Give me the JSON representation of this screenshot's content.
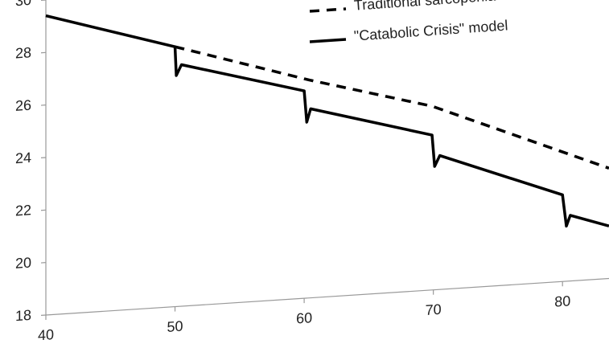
{
  "chart_data": {
    "type": "line",
    "x_scale": "linear",
    "xlim": [
      40,
      83.6
    ],
    "xticks": [
      40,
      50,
      60,
      70,
      80
    ],
    "ylim": [
      18,
      30
    ],
    "yticks": [
      18,
      20,
      22,
      24,
      26,
      28,
      30
    ],
    "grid": false,
    "legend": "top-right",
    "series": [
      {
        "name": "Traditional sarcopenia model",
        "color": "#000000",
        "dash": true,
        "x": [
          50.0,
          60.4,
          69.9,
          83.6
        ],
        "values": [
          27.9,
          26.3,
          25.0,
          22.2
        ]
      },
      {
        "name": "\"Catabolic Crisis\" model",
        "color": "#000000",
        "dash": false,
        "x": [
          40,
          50.0,
          50.1,
          50.5,
          60.0,
          60.2,
          60.5,
          69.9,
          70.1,
          70.5,
          80.0,
          80.3,
          80.6,
          83.6
        ],
        "values": [
          29.4,
          27.9,
          26.8,
          27.2,
          25.9,
          24.7,
          25.2,
          23.9,
          22.7,
          23.1,
          21.3,
          20.1,
          20.5,
          20.0
        ]
      }
    ]
  }
}
